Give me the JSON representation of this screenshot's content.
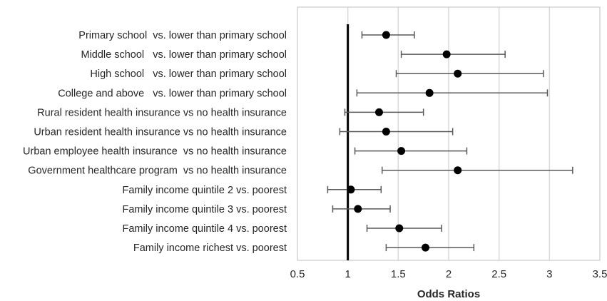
{
  "chart_data": {
    "type": "scatter",
    "subtype": "forest-plot",
    "title": "",
    "xlabel": "Odds Ratios",
    "ylabel": "",
    "xlim": [
      0.5,
      3.5
    ],
    "xticks": [
      "0.5",
      "1",
      "1.5",
      "2",
      "2.5",
      "3",
      "3.5"
    ],
    "xtick_values": [
      0.5,
      1,
      1.5,
      2,
      2.5,
      3,
      3.5
    ],
    "reference_line": 1,
    "grid": "vertical",
    "categories": [
      "Primary school  vs. lower than primary school",
      "Middle school   vs. lower than primary school",
      "High school   vs. lower than primary school",
      "College and above   vs. lower than primary school",
      "Rural resident health insurance vs no health insurance",
      "Urban resident health insurance vs no health insurance",
      "Urban employee health insurance  vs no health insurance",
      "Government healthcare program  vs no health insurance",
      "Family income quintile 2 vs. poorest",
      "Family income quintile 3 vs. poorest",
      "Family income quintile 4 vs. poorest",
      "Family income richest vs. poorest"
    ],
    "odds_ratio": [
      1.38,
      1.98,
      2.09,
      1.81,
      1.31,
      1.38,
      1.53,
      2.09,
      1.03,
      1.1,
      1.51,
      1.77
    ],
    "ci_lower": [
      1.14,
      1.53,
      1.48,
      1.09,
      0.97,
      0.92,
      1.07,
      1.34,
      0.8,
      0.85,
      1.19,
      1.38
    ],
    "ci_upper": [
      1.66,
      2.56,
      2.94,
      2.98,
      1.75,
      2.04,
      2.18,
      3.23,
      1.33,
      1.42,
      1.93,
      2.25
    ],
    "colors": {
      "marker": "#000000",
      "whisker": "#595959",
      "grid": "#d9d9d9",
      "frame": "#bfbfbf",
      "reference": "#000000"
    }
  }
}
